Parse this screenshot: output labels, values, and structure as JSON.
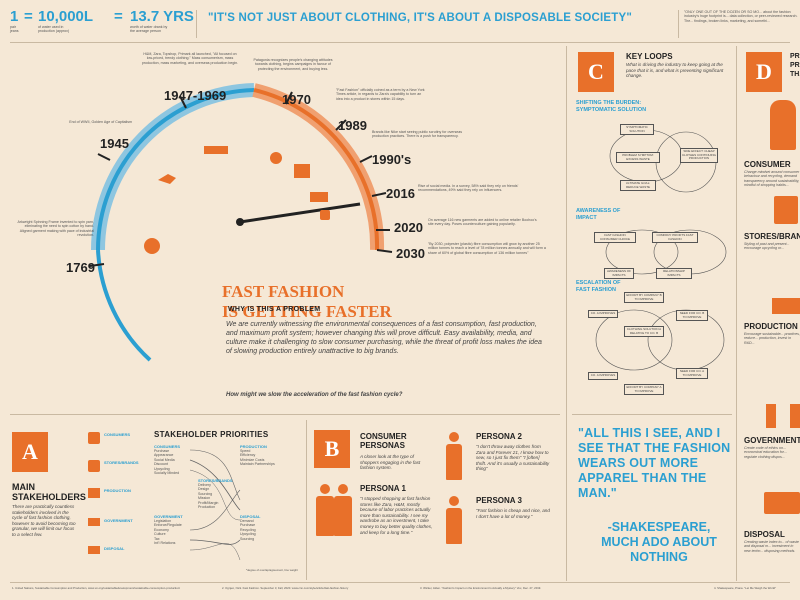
{
  "top": {
    "eq1_num": "1",
    "eq1_label": "pair\njeans",
    "eq_sym": "=",
    "eq2_num": "10,000L",
    "eq2_label": "of water used in\nproduction (approx)",
    "eq3_num": "13.7 YRS",
    "eq3_sup": "1",
    "eq3_label": "worth of water drank by\nthe average person",
    "quote": "\"IT'S NOT JUST ABOUT CLOTHING, IT'S ABOUT A DISPOSABLE SOCIETY\"",
    "quote_sup": "2",
    "right_note": "\"ONLY ONE OUT OF THE DOZEN OR SO MO... about the fashion industry's huge footprint is... data collection, or peer-reviewed research. The... findings, broken links, marketing, and somethi..."
  },
  "timeline": {
    "years": [
      {
        "label": "1769",
        "note": "Arkwright Spinning Frame invented to spin yarn, eliminating the need to spin cotton by hand. Aligned garment making with pace of industrial revolution."
      },
      {
        "label": "1945",
        "note": "End of WWII, Golden Age of Capitalism"
      },
      {
        "label": "1947-1969",
        "note": "H&M, Zara, Topshop, Primark all launched, \"All focused on low-priced, trendy clothing.\" Mass consumerism, mass production, mass marketing, and overseas production begin."
      },
      {
        "label": "1970",
        "note": "Patagonia recognizes people's changing attitudes towards clothing, begins campaigns in favour of protecting the environment, and buying less."
      },
      {
        "label": "1989",
        "note": "\"Fast Fashion\" officially coined as a term by a New York Times article, in regards to Zara's capability to turn an idea into a product in stores within 15 days."
      },
      {
        "label": "1990's",
        "note": "Brands like Nike start seeing public scrutiny for overseas production practices. There is a push for transparency."
      },
      {
        "label": "2016",
        "note": "Rise of social media. In a survey, 58% said they rely on friends' recommendations, 49% said they rely on influencers."
      },
      {
        "label": "2020",
        "note": "On average 116 new garments are added to online retailer Boohoo's site every day. Poses counterculture gaining popularity."
      },
      {
        "label": "2030",
        "note": "\"By 2030, polyester (plastic) fibre consumption will grow by another 25 million tonnes to reach a level of 78 million tonnes annually and will form a share of 60% of global fibre consumption of 136 million tonnes\""
      }
    ],
    "title_line1": "FAST FASHION",
    "title_line2": "IS GETTING FASTER",
    "why_heading": "WHY IS THIS A PROBLEM",
    "why_body": "We are currently witnessing the environmental consequences of a fast consumption, fast production, and maximum profit system; however changing this will prove difficult. Easy availability, media, and culture make it challenging to slow consumer purchasing, while the threat of profit loss makes the idea of slowing production entirely unattractive to big brands.",
    "question": "How might we slow the acceleration of the fast fashion cycle?"
  },
  "section_a": {
    "letter": "A",
    "title": "MAIN STAKEHOLDERS",
    "body": "There are practically countless stakeholders involved in the cycle of fast fashion clothing, however to avoid becoming too granular, we will limit our focus to a select few.",
    "groups": [
      "CONSUMERS",
      "STORES/BRANDS",
      "PRODUCTION",
      "GOVERNMENT",
      "DISPOSAL"
    ],
    "priorities_title": "STAKEHOLDER PRIORITIES",
    "left_cols": [
      {
        "name": "CONSUMERS",
        "items": [
          "Purchase",
          "Appearance",
          "Social Media",
          "Discount",
          "Upcycling",
          "Socially Minded"
        ]
      },
      {
        "name": "GOVERNMENT",
        "items": [
          "Legislation",
          "Enforce/Regulate",
          "Economy",
          "Culture",
          "Tax",
          "Int'l Relations"
        ]
      }
    ],
    "right_cols": [
      {
        "name": "PRODUCTION",
        "items": [
          "Speed",
          "Efficiency",
          "Minimize Costs",
          "Maintain Partnerships"
        ]
      },
      {
        "name": "STORES/BRANDS",
        "items": [
          "Delivery",
          "Design",
          "Sourcing",
          "Mission",
          "Profit/Margin",
          "Production"
        ]
      },
      {
        "name": "DISPOSAL",
        "items": [
          "Demand",
          "Purchase",
          "Recycling",
          "Upcycling",
          "Sourcing"
        ]
      }
    ],
    "footnote": "*degree of overlap/agreement, line weight"
  },
  "section_b": {
    "letter": "B",
    "title": "CONSUMER PERSONAS",
    "intro": "A closer look at the type of shoppers engaging in the fast fashion system.",
    "personas": [
      {
        "name": "PERSONA 1",
        "quote": "\"I stopped shopping at fast fashion stores like Zara, H&M, mostly because of labor practices actually more than sustainability. I see my wardrobe as an investment, I take money to buy better quality clothes, and keep for a long time.\""
      },
      {
        "name": "PERSONA 2",
        "quote": "\"I don't throw away clothes from Zara and Forever 21, I know how to sew, so I just fix them\" \"I [often] thrift. And it's usually a sustainability thing\""
      },
      {
        "name": "PERSONA 3",
        "quote": "\"Fast fashion is cheap and nice, and I don't have a lot of money.\""
      }
    ]
  },
  "section_c": {
    "letter": "C",
    "title": "KEY LOOPS",
    "intro": "What is driving the industry to keep going at the pace that it is, and what is preventing significant change.",
    "loop1": "SHIFTING THE BURDEN: SYMPTOMATIC SOLUTION",
    "loop2": "AWARENESS OF IMPACT",
    "loop3": "ESCALATION OF FAST FASHION",
    "loop1_nodes": [
      "SYMPTOMATIC SOLUTION",
      "PROBLEM SYMPTOM: EXCESS WASTE",
      "SIDE EFFECT: CHEAP CLOTHES CONTINUING PRODUCTION",
      "ULTIMATE GOAL: REDUCE WASTE"
    ],
    "loop2_nodes": [
      "FAST FASHION CONSUMER CHOICE",
      "COMPANY PROFITS FAST FASHION",
      "AWARENESS OF IMPACTS",
      "RELATIONSHIP IMPACTS"
    ],
    "loop3_nodes": [
      "EFFORT BY COMPANY B TO IMPROVE",
      "CO. A IMPROVES",
      "NEED FOR CO. B TO IMPROVE",
      "CLOTHING SOLUTION A RELATIVE TO CO. B",
      "CO. A IMPROVES",
      "NEED FOR CO. A TO IMPROVE",
      "EFFORT BY COMPANY A TO IMPROVE"
    ],
    "quote": "\"ALL THIS I SEE, AND I SEE THAT THE FASHION WEARS OUT MORE APPAREL THAN THE MAN.\"",
    "attribution": "-SHAKESPEARE, MUCH ADO ABOUT NOTHING"
  },
  "section_d": {
    "letter": "D",
    "title": "PR... PR... TH...",
    "items": [
      {
        "name": "CONSUMER",
        "text": "Change mindset around consumer behaviour and recycling, demand transparency around sustainability, mindful of shopping habits..."
      },
      {
        "name": "STORES/BRAN...",
        "text": "Styling of past and present... encourage upcycling or..."
      },
      {
        "name": "PRODUCTION",
        "text": "Encourage sustainable... practices, reduce... production, invest in R&D..."
      },
      {
        "name": "GOVERNMENT",
        "text": "Create code of ethics on... economical education for... regulate clothing dispos..."
      },
      {
        "name": "DISPOSAL",
        "text": "Creating waste index to... of waste and disposal m... investment in new techn... disposing methods."
      }
    ]
  },
  "footer": [
    "1. United Nations, Sustainable Consumption and Production, www.un.org/sustainabledevelopment/sustainable-consumption-production/",
    "2. Ognjen, Nick. Fast Fashion. September 3, Fall, 2020. www.cnn.com/style/article/fast-fashion-history",
    "3. Wicker, Alden. \"Fashion's Impact on the Environment Is Actually a Mystery\" Vox, Dec. 27, 2019.",
    "4. Shakespeare, Prana. \"Let Me Weigh the World\""
  ],
  "colors": {
    "background": "#f5e8d6",
    "orange": "#e8702a",
    "blue": "#2b9fd1",
    "text": "#333333"
  }
}
